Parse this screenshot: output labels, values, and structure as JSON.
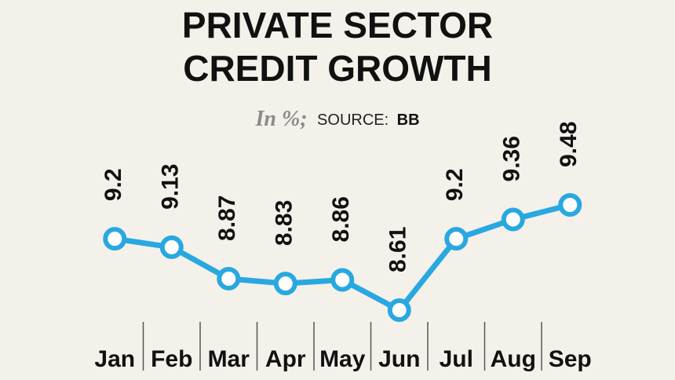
{
  "chart_data": {
    "type": "line",
    "title": [
      "PRIVATE SECTOR",
      "CREDIT GROWTH"
    ],
    "unit_note": "In %;",
    "source_label": "SOURCE:",
    "source": "BB",
    "categories": [
      "Jan",
      "Feb",
      "Mar",
      "Apr",
      "May",
      "Jun",
      "Jul",
      "Aug",
      "Sep"
    ],
    "values": [
      9.2,
      9.13,
      8.87,
      8.83,
      8.86,
      8.61,
      9.2,
      9.36,
      9.48
    ],
    "color": "#29a8e0"
  }
}
